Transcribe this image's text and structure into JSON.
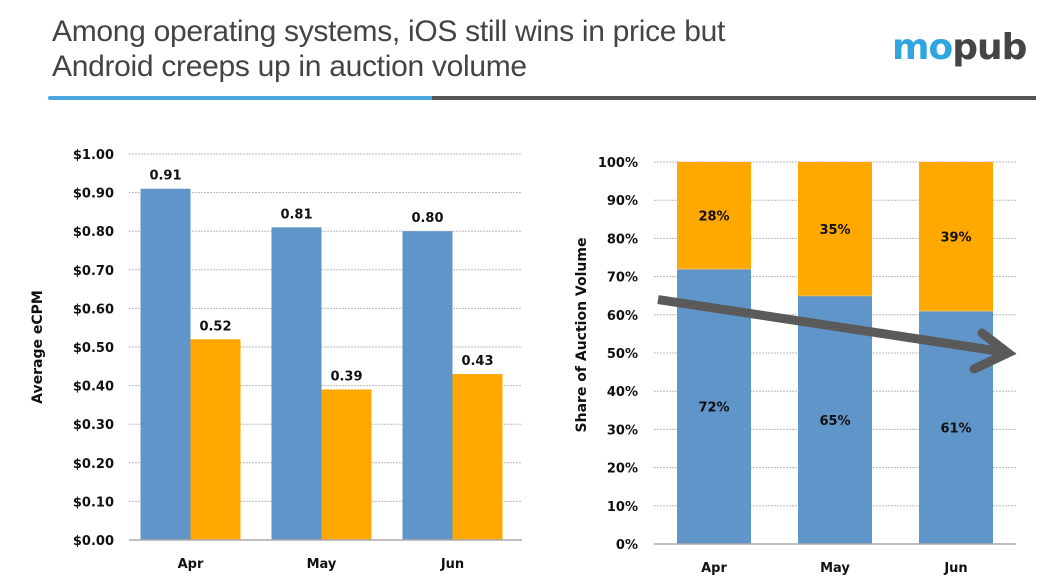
{
  "header": {
    "title_line1": "Among operating systems, iOS still wins in price but",
    "title_line2": "Android creeps up in auction volume",
    "logo_part1": "mo",
    "logo_part2": "pub"
  },
  "colors": {
    "ios": "#6095c9",
    "android": "#ffa800",
    "rule_accent": "#4aa6df",
    "rule_dark": "#555555",
    "arrow": "#5a5a5a",
    "grid": "#bbbbbb",
    "axis": "#aaaaaa"
  },
  "chart_data": [
    {
      "type": "bar",
      "title": "",
      "xlabel": "",
      "ylabel": "Average eCPM",
      "categories": [
        "Apr",
        "May",
        "Jun"
      ],
      "series": [
        {
          "name": "iOS",
          "values": [
            0.91,
            0.81,
            0.8
          ],
          "labels": [
            "0.91",
            "0.81",
            "0.80"
          ]
        },
        {
          "name": "Android",
          "values": [
            0.52,
            0.39,
            0.43
          ],
          "labels": [
            "0.52",
            "0.39",
            "0.43"
          ]
        }
      ],
      "ylim": [
        0,
        1.0
      ],
      "yticks": [
        0,
        0.1,
        0.2,
        0.3,
        0.4,
        0.5,
        0.6,
        0.7,
        0.8,
        0.9,
        1.0
      ],
      "ytick_labels": [
        "$0.00",
        "$0.10",
        "$0.20",
        "$0.30",
        "$0.40",
        "$0.50",
        "$0.60",
        "$0.70",
        "$0.80",
        "$0.90",
        "$1.00"
      ],
      "grid": true,
      "legend": "none"
    },
    {
      "type": "bar",
      "stacked": true,
      "title": "",
      "xlabel": "",
      "ylabel": "Share of Auction Volume",
      "categories": [
        "Apr",
        "May",
        "Jun"
      ],
      "series": [
        {
          "name": "iOS",
          "values": [
            72,
            65,
            61
          ],
          "labels": [
            "72%",
            "65%",
            "61%"
          ]
        },
        {
          "name": "Android",
          "values": [
            28,
            35,
            39
          ],
          "labels": [
            "28%",
            "35%",
            "39%"
          ]
        }
      ],
      "ylim": [
        0,
        100
      ],
      "yticks": [
        0,
        10,
        20,
        30,
        40,
        50,
        60,
        70,
        80,
        90,
        100
      ],
      "ytick_labels": [
        "0%",
        "10%",
        "20%",
        "30%",
        "40%",
        "50%",
        "60%",
        "70%",
        "80%",
        "90%",
        "100%"
      ],
      "grid": true,
      "legend": "none",
      "annotations": [
        {
          "type": "trend-arrow",
          "direction": "down-right",
          "from_value": 64,
          "to_value": 50,
          "meaning": "iOS share declining"
        }
      ]
    }
  ]
}
